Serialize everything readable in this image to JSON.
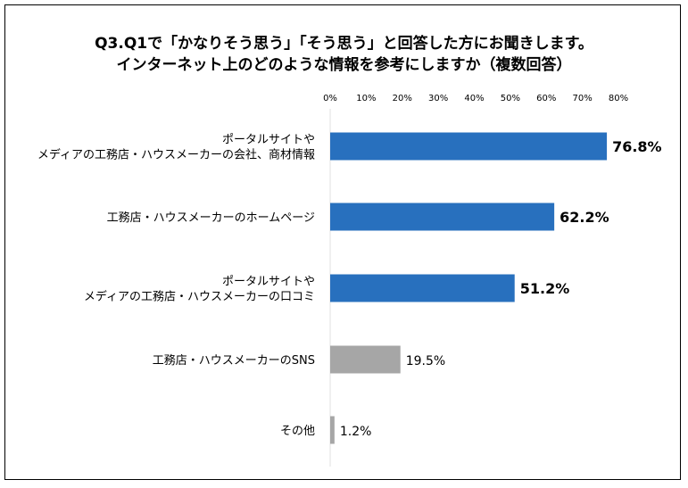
{
  "chart_data": {
    "type": "bar",
    "orientation": "horizontal",
    "title_lines": [
      "Q3.Q1で「かなりそう思う」「そう思う」と回答した方にお聞きします。",
      "インターネット上のどのような情報を参考にしますか（複数回答）"
    ],
    "categories": [
      [
        "ポータルサイトや",
        "メディアの工務店・ハウスメーカーの会社、商材情報"
      ],
      [
        "工務店・ハウスメーカーのホームページ"
      ],
      [
        "ポータルサイトや",
        "メディアの工務店・ハウスメーカーの口コミ"
      ],
      [
        "工務店・ハウスメーカーのSNS"
      ],
      [
        "その他"
      ]
    ],
    "values": [
      76.8,
      62.2,
      51.2,
      19.5,
      1.2
    ],
    "value_labels": [
      "76.8%",
      "62.2%",
      "51.2%",
      "19.5%",
      "1.2%"
    ],
    "highlighted": [
      true,
      true,
      true,
      false,
      false
    ],
    "xlim": [
      0,
      80
    ],
    "xticks": [
      "0%",
      "10%",
      "20%",
      "30%",
      "40%",
      "50%",
      "60%",
      "70%",
      "80%"
    ],
    "xlabel": "",
    "ylabel": "",
    "grid": false,
    "colors": {
      "highlight": "#2870be",
      "normal": "#a6a6a6",
      "axis": "#e0e0e0"
    }
  }
}
